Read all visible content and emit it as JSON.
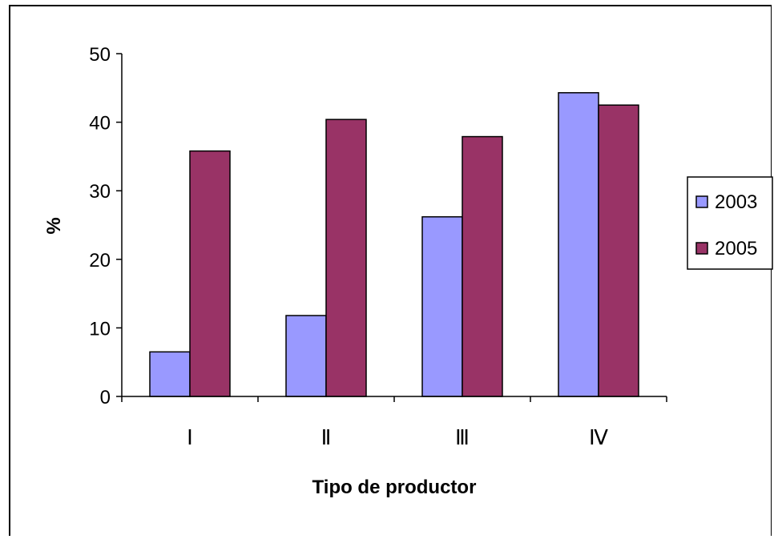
{
  "chart_data": {
    "type": "bar",
    "categories": [
      "Ⅰ",
      "Ⅱ",
      "Ⅲ",
      "Ⅳ"
    ],
    "series": [
      {
        "name": "2003",
        "values": [
          6.5,
          11.8,
          26.2,
          44.3
        ],
        "color": "#9999ff"
      },
      {
        "name": "2005",
        "values": [
          35.8,
          40.4,
          37.9,
          42.5
        ],
        "color": "#993366"
      }
    ],
    "yticks": [
      0,
      10,
      20,
      30,
      40,
      50
    ],
    "ylim": [
      0,
      50
    ],
    "xlabel": "Tipo de productor",
    "ylabel": "%",
    "grid": false,
    "legend_position": "right"
  }
}
